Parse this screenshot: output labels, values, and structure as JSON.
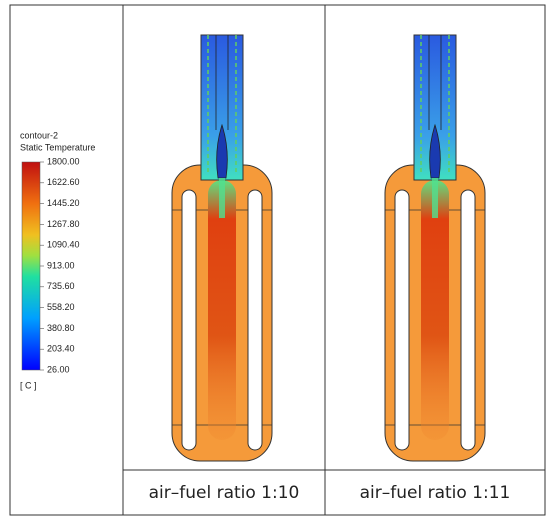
{
  "legend": {
    "name": "contour-2",
    "quantity": "Static Temperature",
    "unit": "[ C ]",
    "range": [
      26,
      1800
    ],
    "ticks": [
      {
        "value": 1800,
        "label": "1800.00"
      },
      {
        "value": 1622.6,
        "label": "1622.60"
      },
      {
        "value": 1445.2,
        "label": "1445.20"
      },
      {
        "value": 1267.8,
        "label": "1267.80"
      },
      {
        "value": 1090.4,
        "label": "1090.40"
      },
      {
        "value": 913,
        "label": "913.00"
      },
      {
        "value": 735.6,
        "label": "735.60"
      },
      {
        "value": 558.2,
        "label": "558.20"
      },
      {
        "value": 380.8,
        "label": "380.80"
      },
      {
        "value": 203.4,
        "label": "203.40"
      },
      {
        "value": 26,
        "label": "26.00"
      }
    ]
  },
  "captions": [
    "air–fuel ratio 1:10",
    "air–fuel ratio 1:11"
  ]
}
